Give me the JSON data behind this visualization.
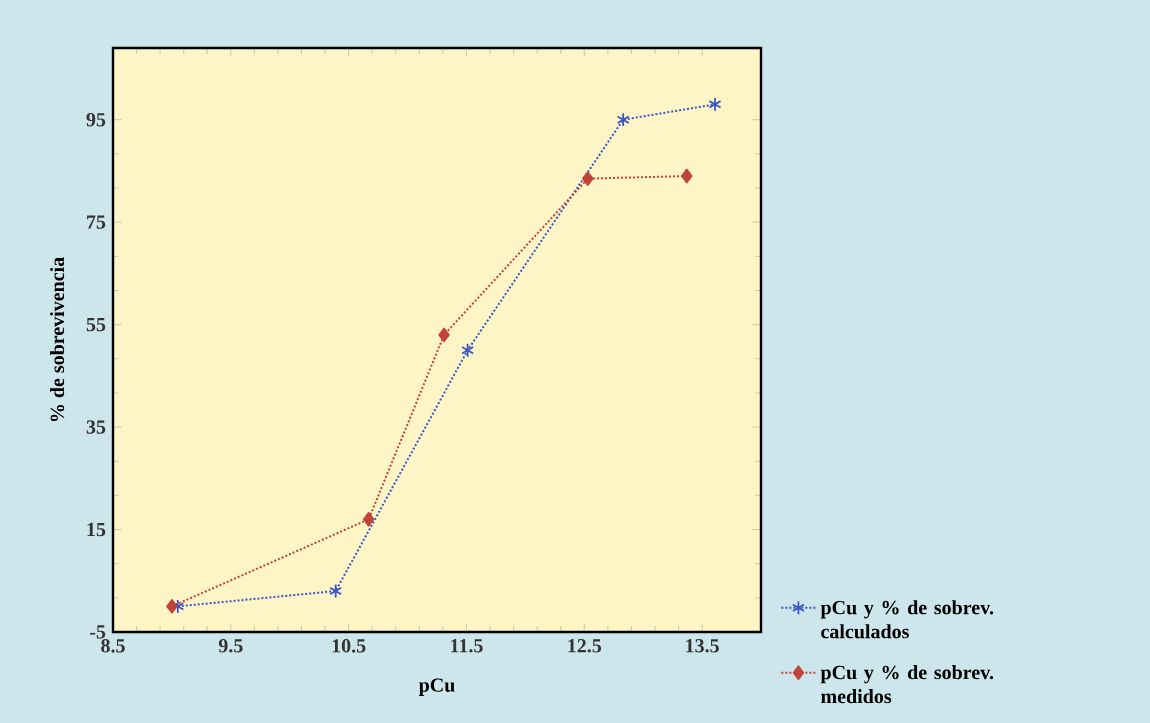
{
  "chart_data": {
    "type": "line",
    "xlabel": "pCu",
    "ylabel": "% de sobrevivencia",
    "xlim": [
      8.5,
      14.0
    ],
    "ylim": [
      -5,
      109
    ],
    "xticks": [
      8.5,
      9.5,
      10.5,
      11.5,
      12.5,
      13.5
    ],
    "yticks": [
      -5,
      15,
      35,
      55,
      75,
      95
    ],
    "legend": "right",
    "line_style": "dotted",
    "series": [
      {
        "name": "pCu y % de sobrev. calculados",
        "color": "#3a55c8",
        "marker": "cross",
        "x": [
          9.05,
          10.39,
          11.51,
          12.83,
          13.61
        ],
        "values": [
          0,
          3,
          50,
          95,
          98
        ]
      },
      {
        "name": "pCu y % de sobrev. medidos",
        "color": "#c0443a",
        "marker": "diamond",
        "x": [
          9.0,
          10.67,
          11.31,
          12.53,
          13.37
        ],
        "values": [
          0,
          17,
          53,
          83.5,
          84
        ]
      }
    ]
  }
}
